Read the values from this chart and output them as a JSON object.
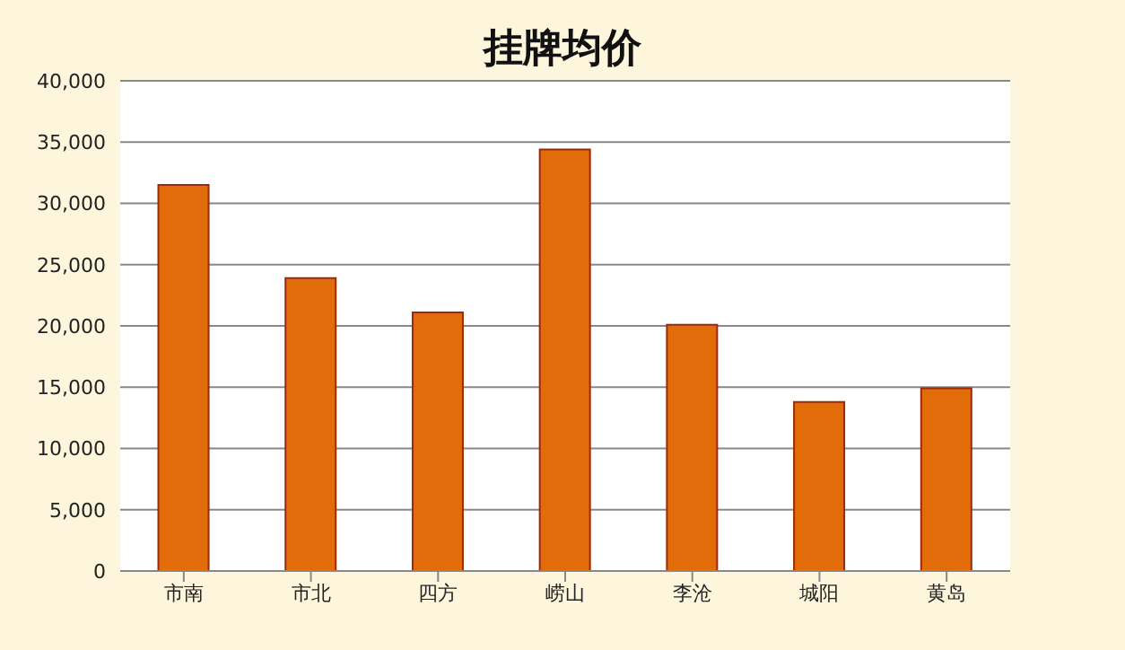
{
  "chart_data": {
    "type": "bar",
    "title": "挂牌均价",
    "categories": [
      "市南",
      "市北",
      "四方",
      "崂山",
      "李沧",
      "城阳",
      "黄岛"
    ],
    "values": [
      31500,
      23900,
      21100,
      34400,
      20100,
      13800,
      14900
    ],
    "color": "#e36c0a",
    "ylim": [
      0,
      40000
    ],
    "yticks": [
      0,
      {
        "value": 5000,
        "label": "5,000"
      },
      {
        "value": 10000,
        "label": "10,000"
      },
      {
        "value": 15000,
        "label": "15,000"
      },
      {
        "value": 20000,
        "label": "20,000"
      },
      {
        "value": 25000,
        "label": "25,000"
      },
      {
        "value": 30000,
        "label": "30,000"
      },
      {
        "value": 35000,
        "label": "35,000"
      },
      {
        "value": 40000,
        "label": "40,000"
      }
    ],
    "grid": "y",
    "legend": false
  }
}
